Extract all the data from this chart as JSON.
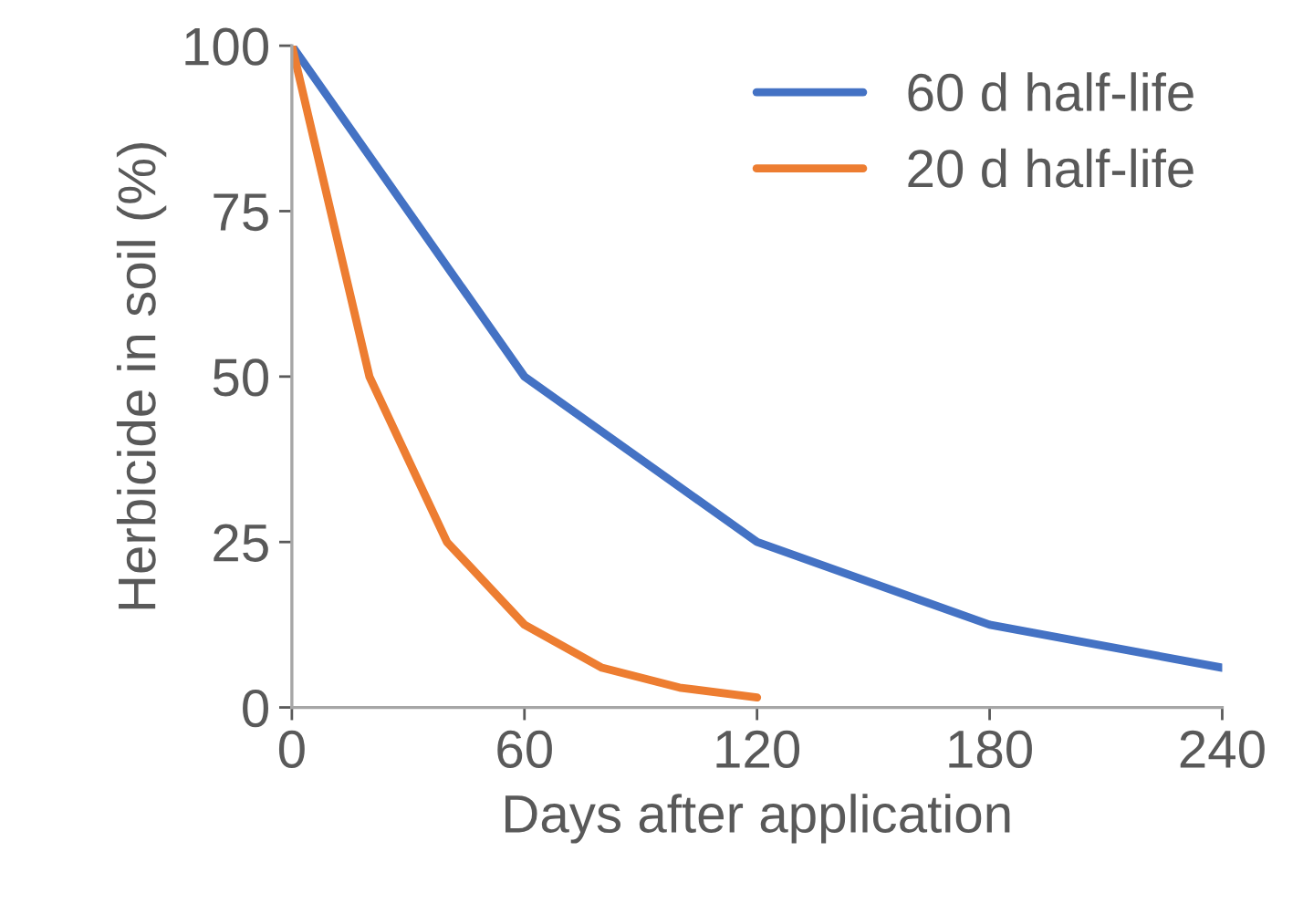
{
  "chart_data": {
    "type": "line",
    "xlabel": "Days after application",
    "ylabel": "Herbicide in soil (%)",
    "xlim": [
      0,
      240
    ],
    "xticks": [
      0,
      60,
      120,
      180,
      240
    ],
    "ylim": [
      0,
      100
    ],
    "yticks": [
      0,
      25,
      50,
      75,
      100
    ],
    "grid": false,
    "legend": "top right",
    "marker": "none",
    "line_style": "solid",
    "series": [
      {
        "name": "60 d half-life",
        "color": "#4472c4",
        "x": [
          0,
          60,
          120,
          180,
          240
        ],
        "values": [
          100,
          50,
          25,
          12.5,
          6
        ]
      },
      {
        "name": "20 d half-life",
        "color": "#ed7d31",
        "x": [
          0,
          20,
          40,
          60,
          80,
          100,
          120
        ],
        "values": [
          100,
          50,
          25,
          12.5,
          6,
          3,
          1.5
        ]
      }
    ]
  }
}
